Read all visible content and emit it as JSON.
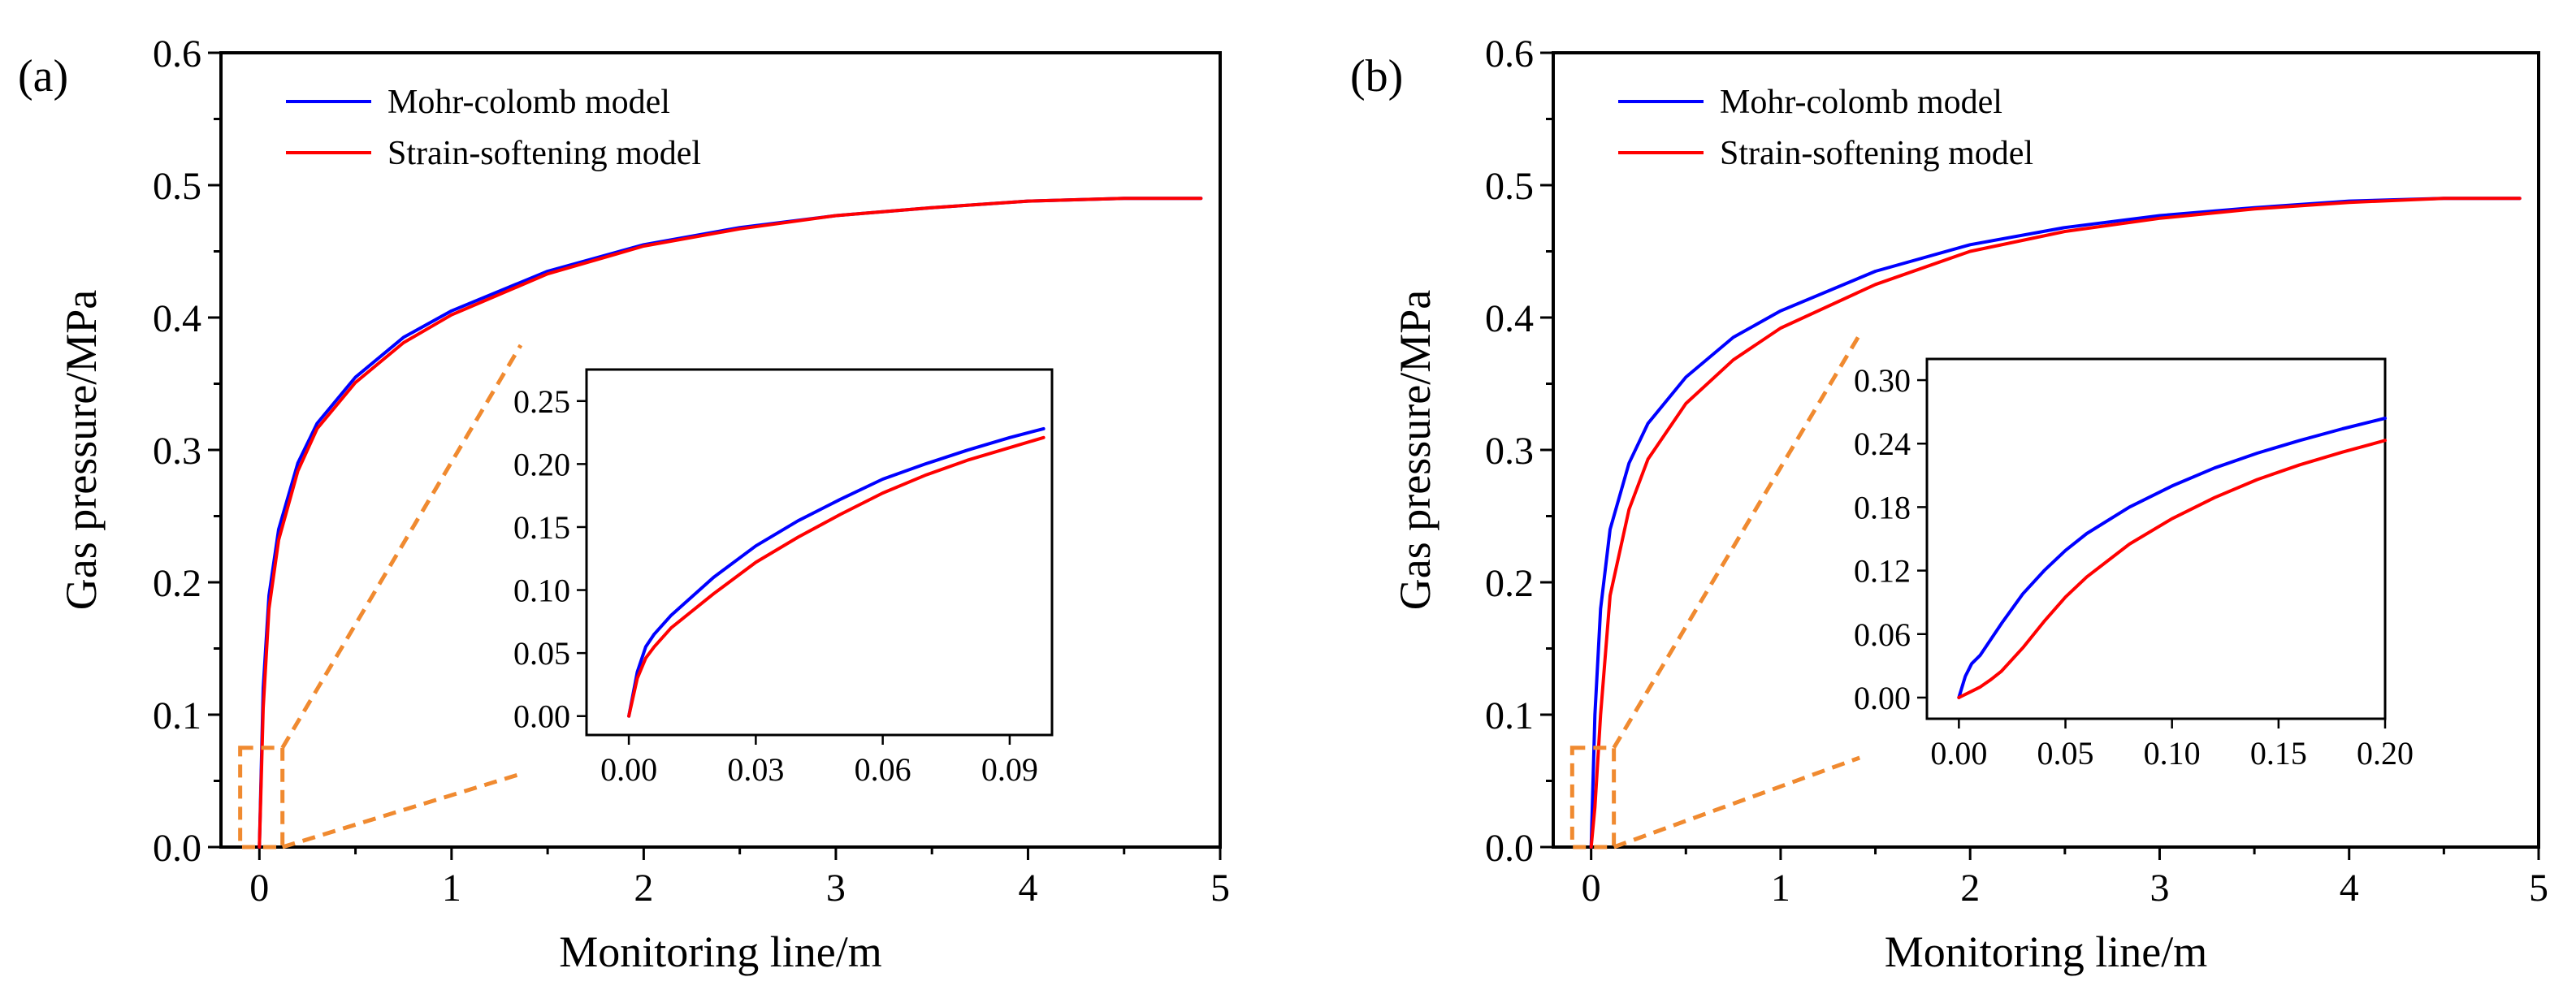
{
  "chart_data": [
    {
      "type": "line",
      "panel_label": "(a)",
      "xlabel": "Monitoring line/m",
      "ylabel": "Gas pressure/MPa",
      "xlim": [
        -0.2,
        5.0
      ],
      "ylim": [
        0.0,
        0.6
      ],
      "xticks": [
        0,
        1,
        2,
        3,
        4,
        5
      ],
      "xtick_labels": [
        "0",
        "1",
        "2",
        "3",
        "4",
        "5"
      ],
      "yticks": [
        0.0,
        0.1,
        0.2,
        0.3,
        0.4,
        0.5,
        0.6
      ],
      "ytick_labels": [
        "0.0",
        "0.1",
        "0.2",
        "0.3",
        "0.4",
        "0.5",
        "0.6"
      ],
      "legend_position": "top-left",
      "series": [
        {
          "name": "Mohr-colomb model",
          "color": "#0000ff",
          "x": [
            0,
            0.02,
            0.05,
            0.1,
            0.2,
            0.3,
            0.5,
            0.75,
            1.0,
            1.5,
            2.0,
            2.5,
            3.0,
            3.5,
            4.0,
            4.5,
            4.9
          ],
          "y": [
            0,
            0.12,
            0.19,
            0.24,
            0.29,
            0.32,
            0.355,
            0.385,
            0.405,
            0.435,
            0.455,
            0.468,
            0.477,
            0.483,
            0.488,
            0.49,
            0.49
          ]
        },
        {
          "name": "Strain-softening model",
          "color": "#ff0000",
          "x": [
            0,
            0.02,
            0.05,
            0.1,
            0.2,
            0.3,
            0.5,
            0.75,
            1.0,
            1.5,
            2.0,
            2.5,
            3.0,
            3.5,
            4.0,
            4.5,
            4.9
          ],
          "y": [
            0,
            0.105,
            0.18,
            0.232,
            0.284,
            0.316,
            0.351,
            0.381,
            0.402,
            0.433,
            0.454,
            0.467,
            0.477,
            0.483,
            0.488,
            0.49,
            0.49
          ]
        }
      ],
      "zoom_box": {
        "x_range": [
          -0.1,
          0.12
        ],
        "y_range": [
          0.0,
          0.075
        ]
      },
      "inset": {
        "xlim": [
          -0.01,
          0.1
        ],
        "ylim": [
          -0.015,
          0.275
        ],
        "xticks": [
          0.0,
          0.03,
          0.06,
          0.09
        ],
        "xtick_labels": [
          "0.00",
          "0.03",
          "0.06",
          "0.09"
        ],
        "yticks": [
          0.0,
          0.05,
          0.1,
          0.15,
          0.2,
          0.25
        ],
        "ytick_labels": [
          "0.00",
          "0.05",
          "0.10",
          "0.15",
          "0.20",
          "0.25"
        ],
        "series": [
          {
            "name": "Mohr-colomb model",
            "color": "#0000ff",
            "x": [
              0,
              0.002,
              0.004,
              0.006,
              0.01,
              0.02,
              0.03,
              0.04,
              0.05,
              0.06,
              0.07,
              0.08,
              0.09,
              0.098
            ],
            "y": [
              0,
              0.035,
              0.055,
              0.065,
              0.08,
              0.11,
              0.135,
              0.155,
              0.172,
              0.188,
              0.2,
              0.211,
              0.221,
              0.228
            ]
          },
          {
            "name": "Strain-softening model",
            "color": "#ff0000",
            "x": [
              0,
              0.002,
              0.004,
              0.006,
              0.01,
              0.02,
              0.03,
              0.04,
              0.05,
              0.06,
              0.07,
              0.08,
              0.09,
              0.098
            ],
            "y": [
              0,
              0.03,
              0.046,
              0.055,
              0.07,
              0.097,
              0.122,
              0.142,
              0.16,
              0.177,
              0.191,
              0.203,
              0.213,
              0.221
            ]
          }
        ]
      }
    },
    {
      "type": "line",
      "panel_label": "(b)",
      "xlabel": "Monitoring line/m",
      "ylabel": "Gas pressure/MPa",
      "xlim": [
        -0.2,
        5.0
      ],
      "ylim": [
        0.0,
        0.6
      ],
      "xticks": [
        0,
        1,
        2,
        3,
        4,
        5
      ],
      "xtick_labels": [
        "0",
        "1",
        "2",
        "3",
        "4",
        "5"
      ],
      "yticks": [
        0.0,
        0.1,
        0.2,
        0.3,
        0.4,
        0.5,
        0.6
      ],
      "ytick_labels": [
        "0.0",
        "0.1",
        "0.2",
        "0.3",
        "0.4",
        "0.5",
        "0.6"
      ],
      "legend_position": "top-left",
      "series": [
        {
          "name": "Mohr-colomb model",
          "color": "#0000ff",
          "x": [
            0,
            0.02,
            0.05,
            0.1,
            0.2,
            0.3,
            0.5,
            0.75,
            1.0,
            1.5,
            2.0,
            2.5,
            3.0,
            3.5,
            4.0,
            4.5,
            4.9
          ],
          "y": [
            0,
            0.1,
            0.18,
            0.24,
            0.29,
            0.32,
            0.355,
            0.385,
            0.405,
            0.435,
            0.455,
            0.468,
            0.477,
            0.483,
            0.488,
            0.49,
            0.49
          ]
        },
        {
          "name": "Strain-softening model",
          "color": "#ff0000",
          "x": [
            0,
            0.02,
            0.05,
            0.1,
            0.2,
            0.3,
            0.5,
            0.75,
            1.0,
            1.5,
            2.0,
            2.5,
            3.0,
            3.5,
            4.0,
            4.5,
            4.9
          ],
          "y": [
            0,
            0.03,
            0.1,
            0.19,
            0.255,
            0.293,
            0.335,
            0.368,
            0.392,
            0.425,
            0.45,
            0.465,
            0.475,
            0.482,
            0.487,
            0.49,
            0.49
          ]
        }
      ],
      "zoom_box": {
        "x_range": [
          -0.1,
          0.12
        ],
        "y_range": [
          0.0,
          0.075
        ]
      },
      "inset": {
        "xlim": [
          -0.015,
          0.2
        ],
        "ylim": [
          -0.02,
          0.32
        ],
        "xticks": [
          0.0,
          0.05,
          0.1,
          0.15,
          0.2
        ],
        "xtick_labels": [
          "0.00",
          "0.05",
          "0.10",
          "0.15",
          "0.20"
        ],
        "yticks": [
          0.0,
          0.06,
          0.12,
          0.18,
          0.24,
          0.3
        ],
        "ytick_labels": [
          "0.00",
          "0.06",
          "0.12",
          "0.18",
          "0.24",
          "0.30"
        ],
        "series": [
          {
            "name": "Mohr-colomb model",
            "color": "#0000ff",
            "x": [
              0,
              0.003,
              0.006,
              0.01,
              0.02,
              0.03,
              0.04,
              0.05,
              0.06,
              0.08,
              0.1,
              0.12,
              0.14,
              0.16,
              0.18,
              0.2
            ],
            "y": [
              0,
              0.02,
              0.032,
              0.04,
              0.07,
              0.098,
              0.12,
              0.139,
              0.155,
              0.18,
              0.2,
              0.217,
              0.231,
              0.243,
              0.254,
              0.264
            ]
          },
          {
            "name": "Strain-softening model",
            "color": "#ff0000",
            "x": [
              0,
              0.005,
              0.01,
              0.015,
              0.02,
              0.03,
              0.04,
              0.05,
              0.06,
              0.08,
              0.1,
              0.12,
              0.14,
              0.16,
              0.18,
              0.2
            ],
            "y": [
              0,
              0.005,
              0.01,
              0.017,
              0.025,
              0.047,
              0.072,
              0.095,
              0.114,
              0.145,
              0.169,
              0.189,
              0.206,
              0.22,
              0.232,
              0.243
            ]
          }
        ]
      }
    }
  ]
}
